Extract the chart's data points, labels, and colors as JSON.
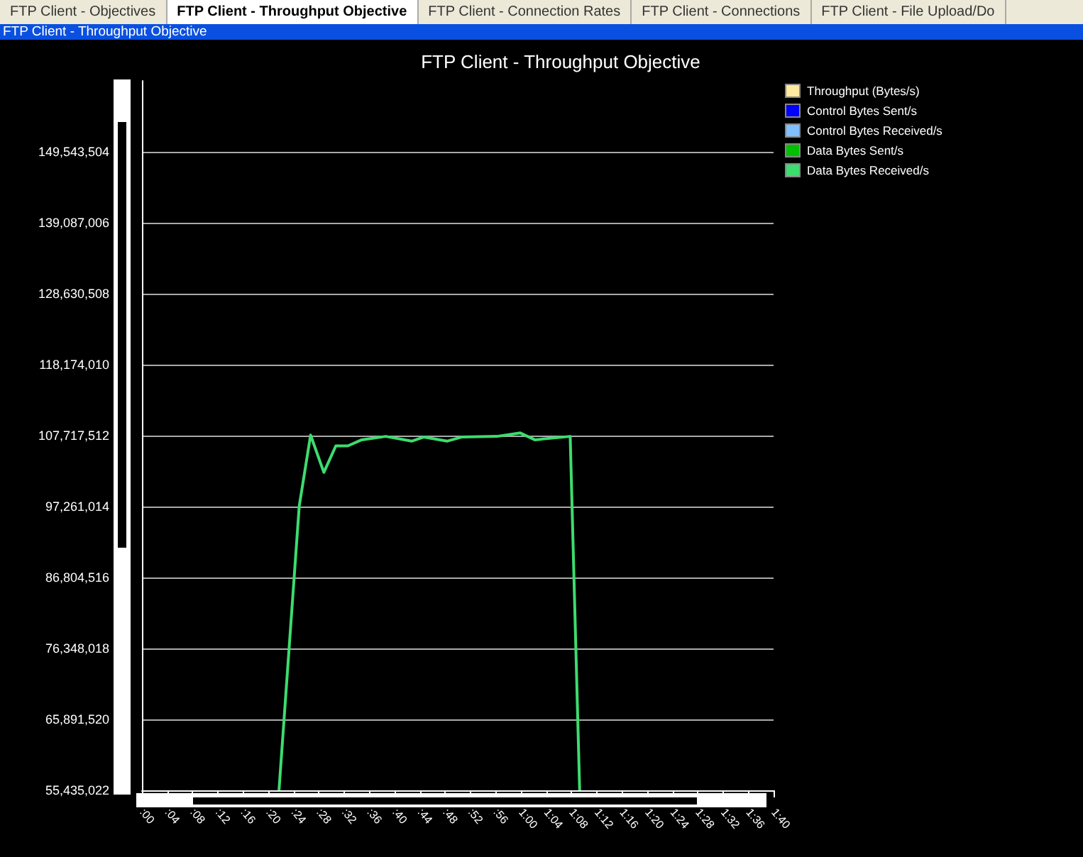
{
  "chart_data": {
    "type": "line",
    "title": "FTP Client - Throughput Objective",
    "annotations": [
      "FTP Client - Objectives",
      "FTP Client - Throughput Objective",
      "FTP Client - Connection Rates",
      "FTP Client - Connections",
      "FTP Client - File Upload/Do",
      "FTP Client - Throughput Objective"
    ],
    "x": [
      21.7,
      24.9,
      26.7,
      28.8,
      30.7,
      32.6,
      34.8,
      38.6,
      42.7,
      44.6,
      48.3,
      50.6,
      56.2,
      59.9,
      62.2,
      67.8,
      69.3
    ],
    "series": [
      {
        "name": "Throughput (Bytes/s)",
        "color": "#ffe8a0",
        "values": [
          null,
          null,
          null,
          null,
          null,
          null,
          null,
          null,
          null,
          null,
          null,
          null,
          null,
          null,
          null,
          null,
          null
        ]
      },
      {
        "name": "Control Bytes Sent/s",
        "color": "#0000ff",
        "values": [
          null,
          null,
          null,
          null,
          null,
          null,
          null,
          null,
          null,
          null,
          null,
          null,
          null,
          null,
          null,
          null,
          null
        ]
      },
      {
        "name": "Control Bytes Received/s",
        "color": "#80c0ff",
        "values": [
          null,
          null,
          null,
          null,
          null,
          null,
          null,
          null,
          null,
          null,
          null,
          null,
          null,
          null,
          null,
          null,
          null
        ]
      },
      {
        "name": "Data Bytes Sent/s",
        "color": "#00c000",
        "values": [
          null,
          null,
          null,
          null,
          null,
          null,
          null,
          null,
          null,
          null,
          null,
          null,
          null,
          null,
          null,
          null,
          null
        ]
      },
      {
        "name": "Data Bytes Received/s",
        "color": "#3ddc6e",
        "values": [
          55435022,
          97300000,
          107800000,
          102300000,
          106200000,
          106200000,
          107100000,
          107600000,
          106900000,
          107500000,
          106900000,
          107500000,
          107600000,
          108100000,
          107100000,
          107600000,
          55435022
        ]
      }
    ],
    "xlim": [
      0,
      100
    ],
    "xticks": [
      {
        "value": 0,
        "label": ":00"
      },
      {
        "value": 4,
        "label": ":04"
      },
      {
        "value": 8,
        "label": ":08"
      },
      {
        "value": 12,
        "label": ":12"
      },
      {
        "value": 16,
        "label": ":16"
      },
      {
        "value": 20,
        "label": ":20"
      },
      {
        "value": 24,
        "label": ":24"
      },
      {
        "value": 28,
        "label": ":28"
      },
      {
        "value": 32,
        "label": ":32"
      },
      {
        "value": 36,
        "label": ":36"
      },
      {
        "value": 40,
        "label": ":40"
      },
      {
        "value": 44,
        "label": ":44"
      },
      {
        "value": 48,
        "label": ":48"
      },
      {
        "value": 52,
        "label": ":52"
      },
      {
        "value": 56,
        "label": ":56"
      },
      {
        "value": 60,
        "label": "1:00"
      },
      {
        "value": 64,
        "label": "1:04"
      },
      {
        "value": 68,
        "label": "1:08"
      },
      {
        "value": 72,
        "label": "1:12"
      },
      {
        "value": 76,
        "label": "1:16"
      },
      {
        "value": 80,
        "label": "1:20"
      },
      {
        "value": 84,
        "label": "1:24"
      },
      {
        "value": 88,
        "label": "1:28"
      },
      {
        "value": 92,
        "label": "1:32"
      },
      {
        "value": 96,
        "label": "1:36"
      },
      {
        "value": 100,
        "label": "1:40"
      }
    ],
    "ylim": [
      55435022,
      160000002
    ],
    "yticks": [
      {
        "value": 55435022,
        "label": "55,435,022"
      },
      {
        "value": 65891520,
        "label": "65,891,520"
      },
      {
        "value": 76348018,
        "label": "76,348,018"
      },
      {
        "value": 86804516,
        "label": "86,804,516"
      },
      {
        "value": 97261014,
        "label": "97,261,014"
      },
      {
        "value": 107717512,
        "label": "107,717,512"
      },
      {
        "value": 118174010,
        "label": "118,174,010"
      },
      {
        "value": 128630508,
        "label": "128,630,508"
      },
      {
        "value": 139087006,
        "label": "139,087,006"
      },
      {
        "value": 149543504,
        "label": "149,543,504"
      }
    ],
    "grid": "y",
    "legend": "top right",
    "marker": "none",
    "line_style": "solid"
  }
}
